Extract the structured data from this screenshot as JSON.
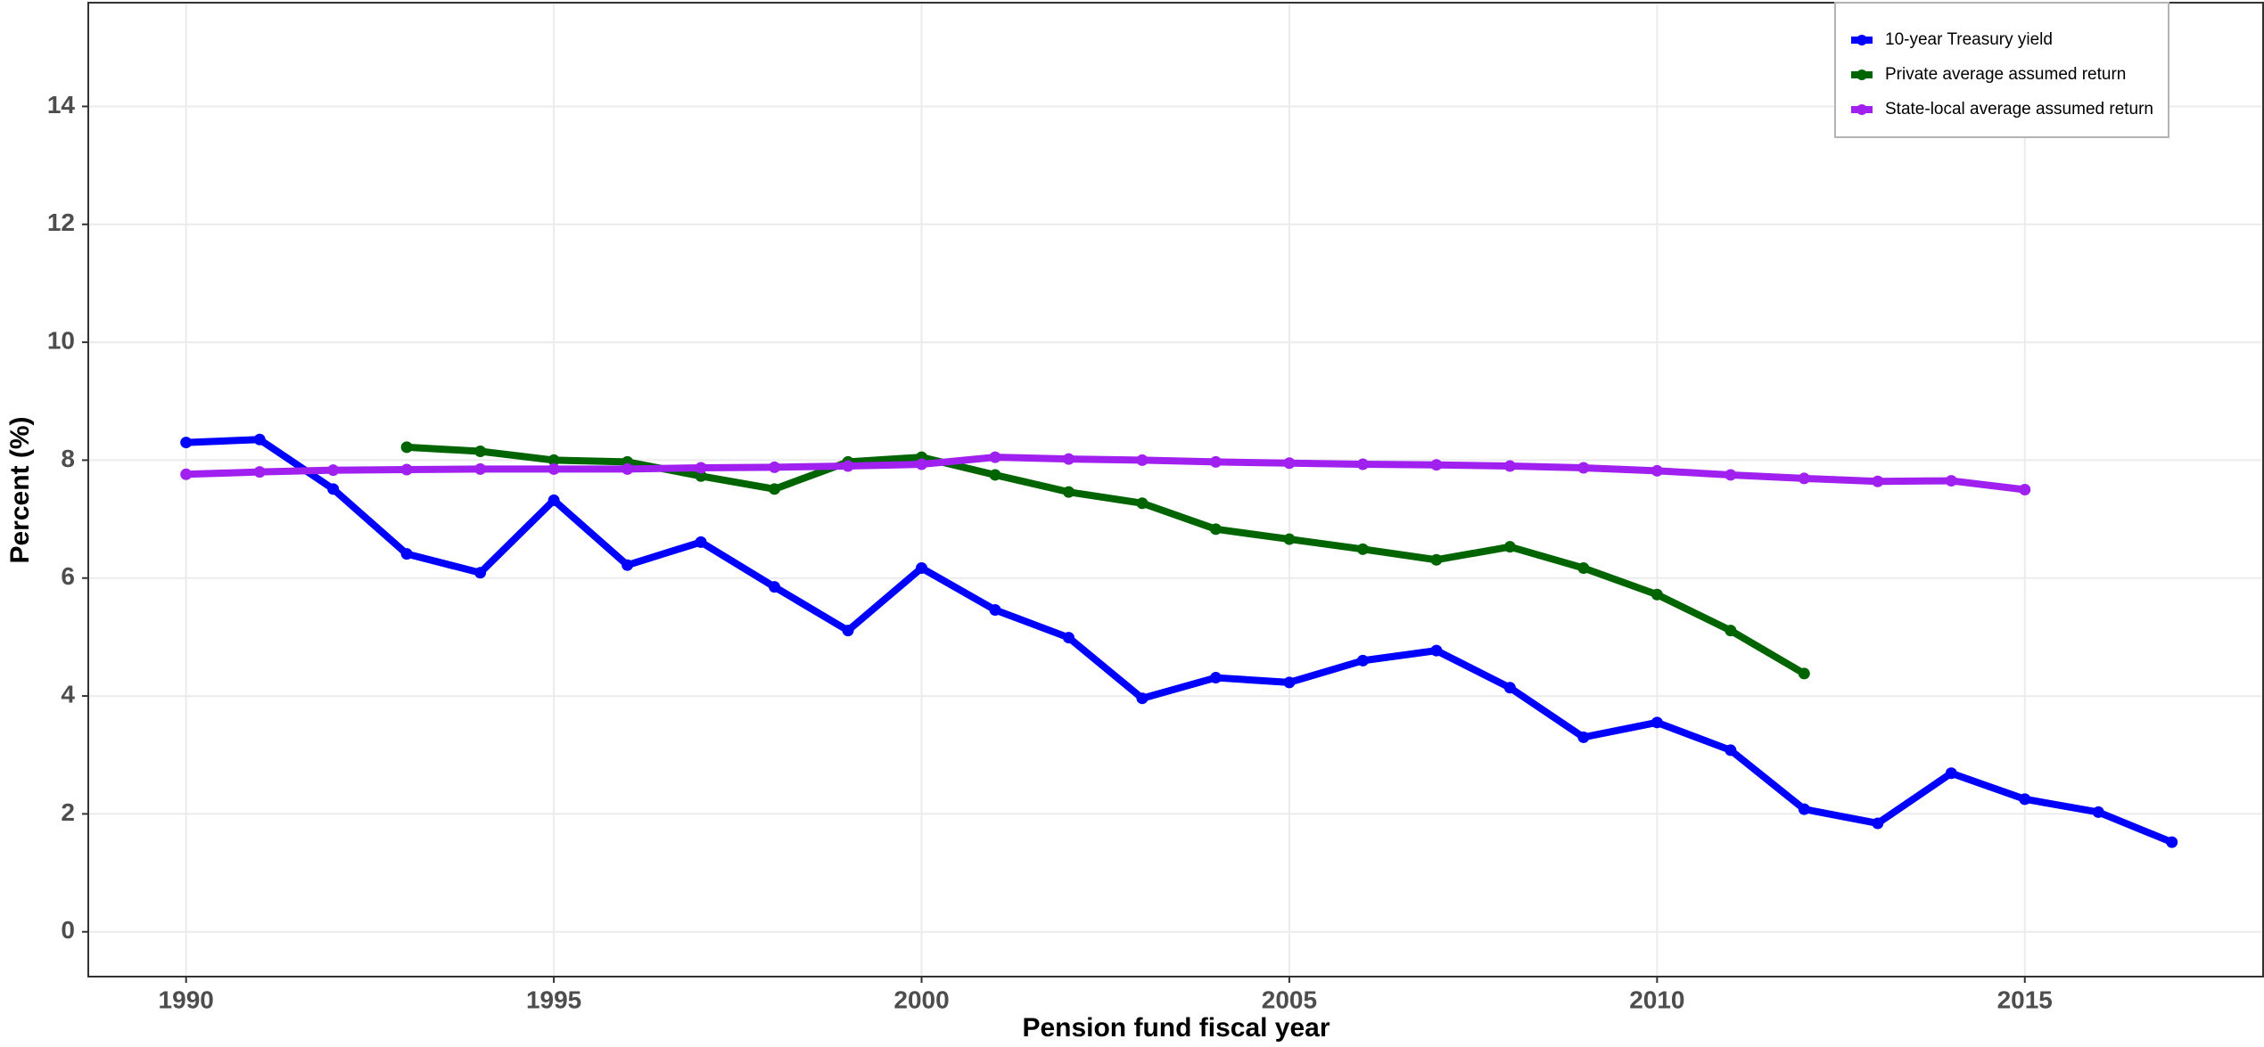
{
  "chart_data": {
    "type": "line",
    "x_label": "Pension fund fiscal year",
    "y_label": "Percent (%)",
    "x": [
      1990,
      1991,
      1992,
      1993,
      1994,
      1995,
      1996,
      1997,
      1998,
      1999,
      2000,
      2001,
      2002,
      2003,
      2004,
      2005,
      2006,
      2007,
      2008,
      2009,
      2010,
      2011,
      2012,
      2013,
      2014,
      2015,
      2016,
      2017
    ],
    "series": [
      {
        "name": "10-year Treasury yield",
        "color": "#0000ff",
        "values": [
          8.3,
          8.35,
          7.51,
          6.41,
          6.09,
          7.32,
          6.22,
          6.61,
          5.85,
          5.11,
          6.17,
          5.46,
          4.99,
          3.96,
          4.31,
          4.23,
          4.6,
          4.77,
          4.14,
          3.3,
          3.55,
          3.08,
          2.08,
          1.84,
          2.69,
          2.25,
          2.03,
          1.52
        ]
      },
      {
        "name": "Private average assumed return",
        "color": "#006400",
        "values": [
          null,
          null,
          null,
          8.22,
          8.15,
          8.0,
          7.97,
          7.73,
          7.51,
          7.97,
          8.05,
          7.75,
          7.46,
          7.27,
          6.83,
          6.66,
          6.49,
          6.31,
          6.53,
          6.17,
          5.72,
          5.11,
          4.38,
          null,
          null,
          null,
          null,
          null
        ]
      },
      {
        "name": "State-local average assumed return",
        "color": "#a020f0",
        "values": [
          7.76,
          7.8,
          7.83,
          7.84,
          7.85,
          7.85,
          7.85,
          7.87,
          7.88,
          7.9,
          7.93,
          8.05,
          8.02,
          8.0,
          7.97,
          7.95,
          7.93,
          7.92,
          7.9,
          7.87,
          7.82,
          7.75,
          7.69,
          7.64,
          7.65,
          7.5,
          null,
          null
        ]
      }
    ],
    "xlim": [
      1988.67,
      2018.24
    ],
    "xticks": [
      1990,
      1995,
      2000,
      2005,
      2010,
      2015
    ],
    "ylim": [
      -0.76,
      15.76
    ],
    "yticks": [
      0,
      2,
      4,
      6,
      8,
      10,
      12,
      14
    ],
    "grid": true,
    "legend": "top-right"
  }
}
